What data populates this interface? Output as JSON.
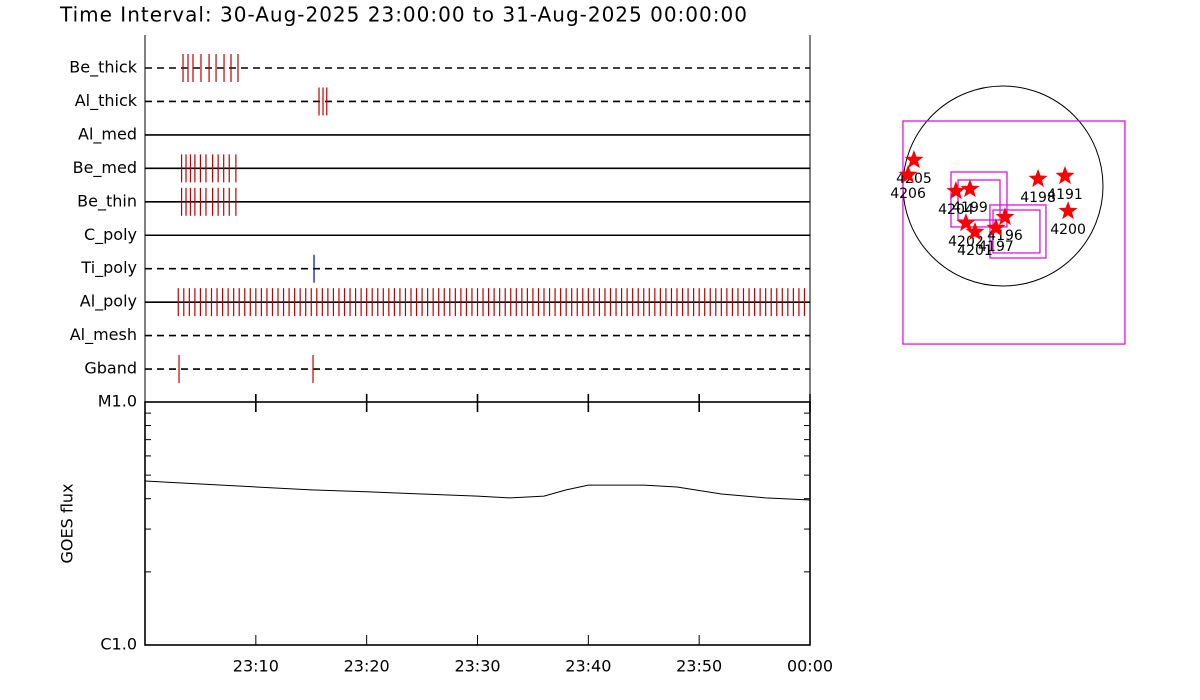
{
  "title": "Time Interval: 30-Aug-2025 23:00:00 to 31-Aug-2025 00:00:00",
  "chart_data": [
    {
      "type": "timeline",
      "xlim": [
        0,
        60
      ],
      "filters": [
        {
          "name": "Be_thick",
          "style": "dashed",
          "color": "#c00000",
          "times": [
            3.43,
            3.88,
            4.33,
            5.05,
            5.78,
            6.41,
            7.13,
            7.76,
            8.39
          ]
        },
        {
          "name": "Al_thick",
          "style": "dashed",
          "color": "#c00000",
          "times": [
            15.7,
            16.06,
            16.4
          ]
        },
        {
          "name": "Al_med",
          "style": "solid",
          "color": "#c00000",
          "times": []
        },
        {
          "name": "Be_med",
          "style": "solid",
          "color": "#c00000",
          "times": [
            3.3,
            3.7,
            4.1,
            4.5,
            5.0,
            5.5,
            6.1,
            6.6,
            7.1,
            7.6,
            8.2
          ]
        },
        {
          "name": "Be_thin",
          "style": "solid",
          "color": "#c00000",
          "times": [
            3.3,
            3.7,
            4.1,
            4.5,
            5.0,
            5.5,
            6.1,
            6.6,
            7.1,
            7.6,
            8.2
          ]
        },
        {
          "name": "C_poly",
          "style": "solid",
          "color": "#c00000",
          "times": []
        },
        {
          "name": "Ti_poly",
          "style": "dashed",
          "color": "#0000c0",
          "times": [
            15.25
          ]
        },
        {
          "name": "Al_poly",
          "style": "solid",
          "color": "#c00000",
          "times": [
            3.0,
            3.5,
            4.0,
            4.5,
            5.0,
            5.5,
            6.0,
            6.5,
            7.0,
            7.5,
            8.0,
            8.5,
            9.0,
            9.5,
            10.0,
            10.5,
            11.0,
            11.5,
            12.0,
            12.5,
            13.0,
            13.5,
            14.0,
            14.5,
            15.0,
            15.5,
            16.0,
            16.5,
            17.0,
            17.5,
            18.0,
            18.5,
            19.0,
            19.5,
            20.0,
            20.5,
            21.0,
            21.5,
            22.0,
            22.5,
            23.0,
            23.5,
            24.0,
            24.5,
            25.0,
            25.5,
            26.0,
            26.5,
            27.0,
            27.5,
            28.0,
            28.5,
            29.0,
            29.5,
            30.0,
            30.5,
            31.0,
            31.5,
            32.0,
            32.5,
            33.0,
            33.5,
            34.0,
            34.5,
            35.0,
            35.5,
            36.0,
            36.5,
            37.0,
            37.5,
            38.0,
            38.5,
            39.0,
            39.5,
            40.0,
            40.5,
            41.0,
            41.5,
            42.0,
            42.5,
            43.0,
            43.5,
            44.0,
            44.5,
            45.0,
            45.5,
            46.0,
            46.5,
            47.0,
            47.5,
            48.0,
            48.5,
            49.0,
            49.5,
            50.0,
            50.5,
            51.0,
            51.5,
            52.0,
            52.5,
            53.0,
            53.5,
            54.0,
            54.5,
            55.0,
            55.5,
            56.0,
            56.5,
            57.0,
            57.5,
            58.0,
            58.5,
            59.0,
            59.5
          ]
        },
        {
          "name": "Al_mesh",
          "style": "dashed",
          "color": "#c00000",
          "times": []
        },
        {
          "name": "Gband",
          "style": "dashed",
          "color": "#c00000",
          "times": [
            3.07,
            15.16
          ]
        }
      ]
    },
    {
      "type": "line",
      "ylabel": "GOES flux",
      "log": true,
      "color": "#000000",
      "xlim": [
        0,
        60
      ],
      "xticks": [
        {
          "value": 10,
          "label": "23:10"
        },
        {
          "value": 20,
          "label": "23:20"
        },
        {
          "value": 30,
          "label": "23:30"
        },
        {
          "value": 40,
          "label": "23:40"
        },
        {
          "value": 50,
          "label": "23:50"
        },
        {
          "value": 60,
          "label": "00:00"
        }
      ],
      "ylim": [
        1e-06,
        1e-05
      ],
      "yticks": [
        {
          "value": 1e-06,
          "label": "C1.0"
        },
        {
          "value": 1e-05,
          "label": "M1.0"
        }
      ],
      "yminorticks": [
        2e-06,
        3e-06,
        4e-06,
        5e-06,
        6e-06,
        7e-06,
        8e-06,
        9e-06
      ],
      "x": [
        0,
        5,
        10,
        15,
        20,
        25,
        30,
        33,
        36,
        38,
        40,
        45,
        48,
        52,
        56,
        60
      ],
      "values": [
        4.73e-06,
        4.6e-06,
        4.47e-06,
        4.35e-06,
        4.27e-06,
        4.18e-06,
        4.1e-06,
        4.03e-06,
        4.1e-06,
        4.35e-06,
        4.55e-06,
        4.55e-06,
        4.47e-06,
        4.18e-06,
        4.03e-06,
        3.95e-06
      ]
    },
    {
      "type": "map",
      "regions": [
        {
          "label": "4205",
          "x": -846,
          "y": 247
        },
        {
          "label": "4206",
          "x": -902,
          "y": 105
        },
        {
          "label": "4204",
          "x": -447,
          "y": -48
        },
        {
          "label": "4199",
          "x": -314,
          "y": -29
        },
        {
          "label": "4198",
          "x": 333,
          "y": 67
        },
        {
          "label": "4191",
          "x": 589,
          "y": 95
        },
        {
          "label": "4200",
          "x": 618,
          "y": -238
        },
        {
          "label": "4196",
          "x": 19,
          "y": -295
        },
        {
          "label": "4202",
          "x": -352,
          "y": -352
        },
        {
          "label": "4201",
          "x": -266,
          "y": -437
        },
        {
          "label": "4197",
          "x": -67,
          "y": -399
        }
      ],
      "fov": [
        {
          "x": 104,
          "y": -442,
          "width": 2109,
          "height": 2119
        },
        {
          "x": -228,
          "y": -128,
          "width": 532,
          "height": 522
        },
        {
          "x": -228,
          "y": -133,
          "width": 399,
          "height": 380
        },
        {
          "x": 142,
          "y": -432,
          "width": 532,
          "height": 504
        },
        {
          "x": 128,
          "y": -432,
          "width": 446,
          "height": 408
        }
      ]
    }
  ]
}
